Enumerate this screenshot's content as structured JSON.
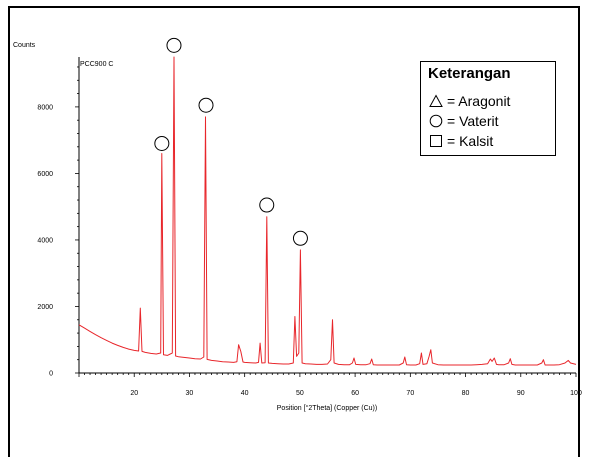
{
  "chart_data": {
    "type": "line",
    "sample_label": "PCC900 C",
    "ylabel": "Counts",
    "xlabel": "Position [°2Theta] (Copper (Cu))",
    "xlim": [
      10,
      100
    ],
    "ylim": [
      0,
      9500
    ],
    "x_ticks": [
      20,
      30,
      40,
      50,
      60,
      70,
      80,
      90,
      100
    ],
    "y_ticks": [
      0,
      2000,
      4000,
      6000,
      8000
    ],
    "line_color": "#e8262b",
    "series": [
      {
        "values": [
          [
            10,
            1450
          ],
          [
            11,
            1350
          ],
          [
            12,
            1250
          ],
          [
            13,
            1150
          ],
          [
            14,
            1060
          ],
          [
            15,
            980
          ],
          [
            16,
            900
          ],
          [
            17,
            830
          ],
          [
            18,
            770
          ],
          [
            19,
            720
          ],
          [
            20,
            680
          ],
          [
            20.8,
            660
          ],
          [
            21.1,
            1950
          ],
          [
            21.4,
            650
          ],
          [
            22,
            620
          ],
          [
            23,
            590
          ],
          [
            24,
            570
          ],
          [
            24.8,
            600
          ],
          [
            25.0,
            6600
          ],
          [
            25.3,
            550
          ],
          [
            26,
            530
          ],
          [
            26.9,
            600
          ],
          [
            27.2,
            9500
          ],
          [
            27.5,
            510
          ],
          [
            28,
            490
          ],
          [
            29,
            470
          ],
          [
            30,
            450
          ],
          [
            31,
            430
          ],
          [
            32,
            420
          ],
          [
            32.6,
            480
          ],
          [
            32.9,
            7700
          ],
          [
            33.2,
            410
          ],
          [
            34,
            380
          ],
          [
            35,
            360
          ],
          [
            36,
            340
          ],
          [
            37,
            330
          ],
          [
            38,
            320
          ],
          [
            38.6,
            340
          ],
          [
            38.9,
            850
          ],
          [
            39.3,
            650
          ],
          [
            39.7,
            330
          ],
          [
            40,
            320
          ],
          [
            41,
            310
          ],
          [
            42,
            300
          ],
          [
            42.5,
            320
          ],
          [
            42.8,
            900
          ],
          [
            43.1,
            300
          ],
          [
            43.7,
            310
          ],
          [
            44.0,
            4700
          ],
          [
            44.3,
            300
          ],
          [
            45,
            290
          ],
          [
            46,
            280
          ],
          [
            47,
            270
          ],
          [
            48,
            270
          ],
          [
            48.8,
            300
          ],
          [
            49.1,
            1700
          ],
          [
            49.4,
            500
          ],
          [
            49.8,
            600
          ],
          [
            50.1,
            3700
          ],
          [
            50.4,
            300
          ],
          [
            51,
            280
          ],
          [
            52,
            270
          ],
          [
            53,
            260
          ],
          [
            54,
            260
          ],
          [
            55,
            270
          ],
          [
            55.6,
            400
          ],
          [
            55.9,
            1600
          ],
          [
            56.2,
            300
          ],
          [
            57,
            260
          ],
          [
            58,
            250
          ],
          [
            59,
            250
          ],
          [
            59.5,
            300
          ],
          [
            59.8,
            450
          ],
          [
            60.1,
            260
          ],
          [
            61,
            250
          ],
          [
            62,
            250
          ],
          [
            62.7,
            280
          ],
          [
            63.0,
            420
          ],
          [
            63.3,
            250
          ],
          [
            64,
            240
          ],
          [
            65,
            240
          ],
          [
            66,
            240
          ],
          [
            67,
            240
          ],
          [
            68,
            240
          ],
          [
            68.7,
            300
          ],
          [
            69.0,
            480
          ],
          [
            69.3,
            250
          ],
          [
            70,
            240
          ],
          [
            71,
            240
          ],
          [
            71.7,
            280
          ],
          [
            72.0,
            600
          ],
          [
            72.3,
            260
          ],
          [
            73,
            280
          ],
          [
            73.4,
            500
          ],
          [
            73.7,
            700
          ],
          [
            74.0,
            300
          ],
          [
            75,
            250
          ],
          [
            76,
            240
          ],
          [
            77,
            240
          ],
          [
            78,
            240
          ],
          [
            79,
            240
          ],
          [
            80,
            240
          ],
          [
            81,
            240
          ],
          [
            82,
            250
          ],
          [
            83,
            260
          ],
          [
            84,
            280
          ],
          [
            84.5,
            420
          ],
          [
            84.8,
            350
          ],
          [
            85.2,
            450
          ],
          [
            85.6,
            260
          ],
          [
            86,
            250
          ],
          [
            87,
            250
          ],
          [
            87.8,
            300
          ],
          [
            88.1,
            430
          ],
          [
            88.4,
            260
          ],
          [
            89,
            240
          ],
          [
            90,
            240
          ],
          [
            91,
            240
          ],
          [
            92,
            240
          ],
          [
            93,
            240
          ],
          [
            93.8,
            300
          ],
          [
            94.1,
            400
          ],
          [
            94.4,
            240
          ],
          [
            95,
            240
          ],
          [
            96,
            240
          ],
          [
            97,
            250
          ],
          [
            98,
            300
          ],
          [
            98.6,
            380
          ],
          [
            99,
            300
          ],
          [
            100,
            260
          ]
        ]
      }
    ],
    "peak_markers": [
      {
        "x": 25.0,
        "y": 6900,
        "phase": "Vaterit"
      },
      {
        "x": 27.2,
        "y": 9850,
        "phase": "Vaterit"
      },
      {
        "x": 33.0,
        "y": 8050,
        "phase": "Vaterit"
      },
      {
        "x": 44.0,
        "y": 5050,
        "phase": "Vaterit"
      },
      {
        "x": 50.1,
        "y": 4050,
        "phase": "Vaterit"
      }
    ],
    "legend": {
      "title": "Keterangan",
      "position": "top-right",
      "entries": [
        {
          "symbol": "triangle",
          "label": "= Aragonit"
        },
        {
          "symbol": "circle",
          "label": "= Vaterit"
        },
        {
          "symbol": "square",
          "label": "= Kalsit"
        }
      ]
    }
  }
}
